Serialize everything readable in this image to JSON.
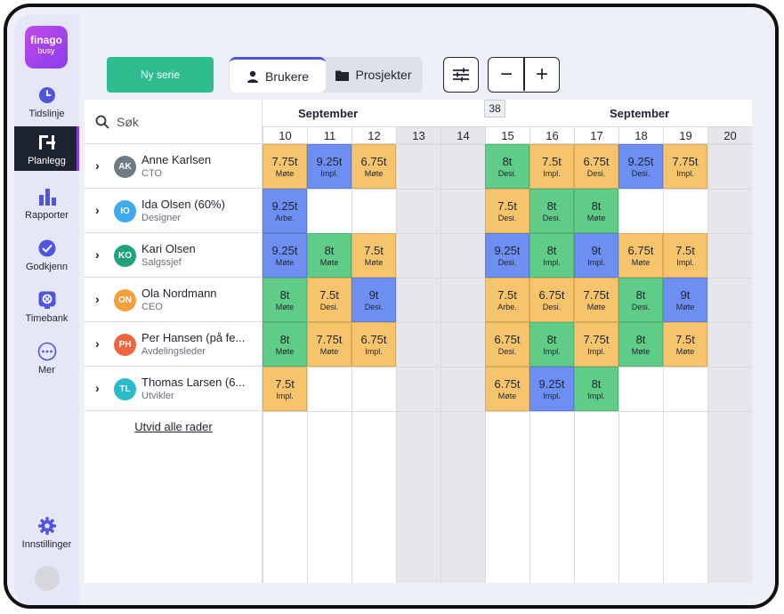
{
  "app": {
    "logo_line1": "finago",
    "logo_line2": "busy"
  },
  "nav": [
    {
      "label": "Tidslinje",
      "icon": "clock-icon"
    },
    {
      "label": "Planlegg",
      "icon": "planner-icon",
      "active": true
    },
    {
      "label": "Rapporter",
      "icon": "bar-chart-icon"
    },
    {
      "label": "Godkjenn",
      "icon": "check-circle-icon"
    },
    {
      "label": "Timebank",
      "icon": "timebank-icon"
    },
    {
      "label": "Mer",
      "icon": "more-icon"
    },
    {
      "label": "Innstillinger",
      "icon": "gear-icon"
    }
  ],
  "toolbar": {
    "new_series": "Ny serie",
    "tab_users": "Brukere",
    "tab_projects": "Prosjekter",
    "filter_icon": "sliders-icon",
    "zoom_out": "−",
    "zoom_in": "+"
  },
  "search": {
    "label": "Søk"
  },
  "calendar": {
    "month_left": "September",
    "month_right": "September",
    "week": "38",
    "days": [
      "10",
      "11",
      "12",
      "13",
      "14",
      "15",
      "16",
      "17",
      "18",
      "19",
      "20"
    ],
    "weekend_index": [
      3,
      4,
      10
    ]
  },
  "colors": {
    "yellow": "#f6c46b",
    "blue": "#6c8ff1",
    "green": "#5fcc88"
  },
  "people": [
    {
      "initials": "AK",
      "name": "Anne Karlsen",
      "role": "CTO",
      "color": "#6d7b86",
      "cells": [
        [
          "7.75t",
          "Møte",
          "yellow"
        ],
        [
          "9.25t",
          "Impl.",
          "blue"
        ],
        [
          "6.75t",
          "Møte",
          "yellow"
        ],
        null,
        null,
        [
          "8t",
          "Desi.",
          "green"
        ],
        [
          "7.5t",
          "Impl.",
          "yellow"
        ],
        [
          "6.75t",
          "Desi.",
          "yellow"
        ],
        [
          "9.25t",
          "Desi.",
          "blue"
        ],
        [
          "7.75t",
          "Impl.",
          "yellow"
        ],
        null
      ]
    },
    {
      "initials": "IO",
      "name": "Ida Olsen (60%)",
      "role": "Designer",
      "color": "#3fa9f0",
      "cells": [
        [
          "9.25t",
          "Arbe.",
          "blue"
        ],
        null,
        null,
        null,
        null,
        [
          "7.5t",
          "Desi.",
          "yellow"
        ],
        [
          "8t",
          "Desi.",
          "green"
        ],
        [
          "8t",
          "Møte",
          "green"
        ],
        null,
        null,
        null
      ]
    },
    {
      "initials": "KO",
      "name": "Kari Olsen",
      "role": "Salgssjef",
      "color": "#1ea37c",
      "cells": [
        [
          "9.25t",
          "Møte",
          "blue"
        ],
        [
          "8t",
          "Møte",
          "green"
        ],
        [
          "7.5t",
          "Møte",
          "yellow"
        ],
        null,
        null,
        [
          "9.25t",
          "Desi.",
          "blue"
        ],
        [
          "8t",
          "Impl.",
          "green"
        ],
        [
          "9t",
          "Impl.",
          "blue"
        ],
        [
          "6.75t",
          "Møte",
          "yellow"
        ],
        [
          "7.5t",
          "Impl.",
          "yellow"
        ],
        null
      ]
    },
    {
      "initials": "ON",
      "name": "Ola Nordmann",
      "role": "CEO",
      "color": "#f5a03c",
      "cells": [
        [
          "8t",
          "Møte",
          "green"
        ],
        [
          "7.5t",
          "Desi.",
          "yellow"
        ],
        [
          "9t",
          "Desi.",
          "blue"
        ],
        null,
        null,
        [
          "7.5t",
          "Arbe.",
          "yellow"
        ],
        [
          "6.75t",
          "Desi.",
          "yellow"
        ],
        [
          "7.75t",
          "Møte",
          "yellow"
        ],
        [
          "8t",
          "Desi.",
          "green"
        ],
        [
          "9t",
          "Møte",
          "blue"
        ],
        null
      ]
    },
    {
      "initials": "PH",
      "name": "Per Hansen (på fe...",
      "role": "Avdelingsleder",
      "color": "#f0643f",
      "cells": [
        [
          "8t",
          "Møte",
          "green"
        ],
        [
          "7.75t",
          "Møte",
          "yellow"
        ],
        [
          "6.75t",
          "Impl.",
          "yellow"
        ],
        null,
        null,
        [
          "6.75t",
          "Desi.",
          "yellow"
        ],
        [
          "8t",
          "Impl.",
          "green"
        ],
        [
          "7.75t",
          "Impl.",
          "yellow"
        ],
        [
          "8t",
          "Møte",
          "green"
        ],
        [
          "7.5t",
          "Møte",
          "yellow"
        ],
        null
      ]
    },
    {
      "initials": "TL",
      "name": "Thomas Larsen (6...",
      "role": "Utvikler",
      "color": "#2cb9c9",
      "cells": [
        [
          "7.5t",
          "Impl.",
          "yellow"
        ],
        null,
        null,
        null,
        null,
        [
          "6.75t",
          "Møte",
          "yellow"
        ],
        [
          "9.25t",
          "Impl.",
          "blue"
        ],
        [
          "8t",
          "Impl.",
          "green"
        ],
        null,
        null,
        null
      ]
    }
  ],
  "expand_all": "Utvid alle rader"
}
